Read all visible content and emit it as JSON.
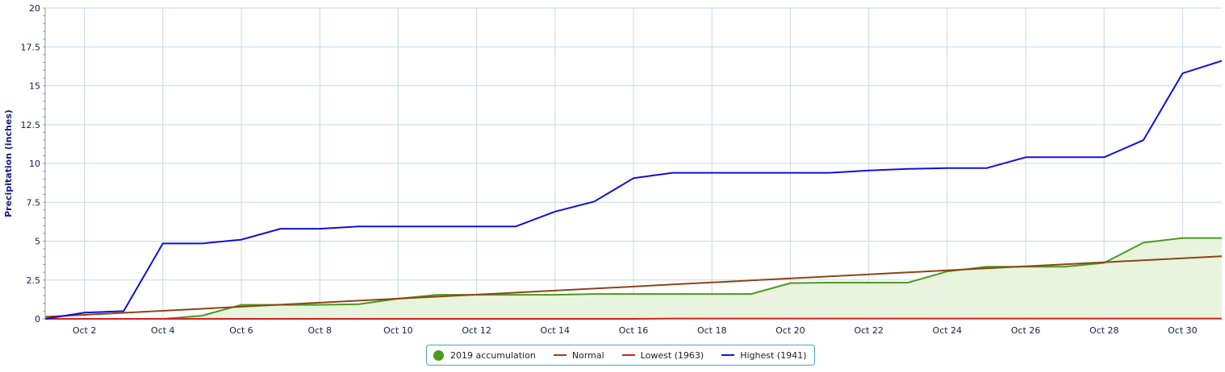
{
  "chart_data": {
    "type": "line",
    "title": "",
    "xlabel": "",
    "ylabel": "Precipitation (inches)",
    "ylim": [
      0,
      20
    ],
    "xlim": [
      1,
      31
    ],
    "y_ticks": [
      "0",
      "2.5",
      "5",
      "7.5",
      "10",
      "12.5",
      "15",
      "17.5",
      "20"
    ],
    "y_tick_values": [
      0,
      2.5,
      5,
      7.5,
      10,
      12.5,
      15,
      17.5,
      20
    ],
    "x_ticks": [
      "Oct 2",
      "Oct 4",
      "Oct 6",
      "Oct 8",
      "Oct 10",
      "Oct 12",
      "Oct 14",
      "Oct 16",
      "Oct 18",
      "Oct 20",
      "Oct 22",
      "Oct 24",
      "Oct 26",
      "Oct 28",
      "Oct 30"
    ],
    "x_tick_values": [
      2,
      4,
      6,
      8,
      10,
      12,
      14,
      16,
      18,
      20,
      22,
      24,
      26,
      28,
      30
    ],
    "grid": true,
    "legend_position": "bottom-center",
    "x": [
      1,
      2,
      3,
      4,
      5,
      6,
      7,
      8,
      9,
      10,
      11,
      12,
      13,
      14,
      15,
      16,
      17,
      18,
      19,
      20,
      21,
      22,
      23,
      24,
      25,
      26,
      27,
      28,
      29,
      30,
      31
    ],
    "series": [
      {
        "name": "2019 accumulation",
        "color": "#4a9a1e",
        "fill": "#e9f4df",
        "area": true,
        "values": [
          0,
          0,
          0,
          0,
          0.2,
          0.9,
          0.9,
          0.9,
          0.95,
          1.3,
          1.55,
          1.55,
          1.55,
          1.55,
          1.6,
          1.6,
          1.6,
          1.6,
          1.6,
          2.3,
          2.33,
          2.33,
          2.33,
          3.05,
          3.35,
          3.35,
          3.35,
          3.6,
          4.9,
          5.2,
          5.2
        ]
      },
      {
        "name": "Normal",
        "color": "#8b4513",
        "area": false,
        "values": [
          0.13,
          0.26,
          0.39,
          0.52,
          0.65,
          0.78,
          0.91,
          1.04,
          1.17,
          1.3,
          1.43,
          1.56,
          1.69,
          1.82,
          1.95,
          2.08,
          2.21,
          2.34,
          2.47,
          2.6,
          2.73,
          2.86,
          2.99,
          3.12,
          3.25,
          3.38,
          3.51,
          3.64,
          3.77,
          3.9,
          4.03
        ]
      },
      {
        "name": "Lowest (1963)",
        "color": "#d62020",
        "area": false,
        "values": [
          0,
          0,
          0,
          0,
          0,
          0,
          0,
          0,
          0,
          0,
          0,
          0,
          0,
          0,
          0,
          0,
          0.02,
          0.02,
          0.02,
          0.02,
          0.02,
          0.02,
          0.02,
          0.02,
          0.02,
          0.02,
          0.02,
          0.02,
          0.02,
          0.02,
          0.02
        ]
      },
      {
        "name": "Highest (1941)",
        "color": "#1010d8",
        "area": false,
        "values": [
          0,
          0.4,
          0.5,
          4.85,
          4.85,
          5.1,
          5.8,
          5.8,
          5.95,
          5.95,
          5.95,
          5.95,
          5.95,
          6.9,
          7.55,
          9.05,
          9.4,
          9.4,
          9.4,
          9.4,
          9.4,
          9.55,
          9.65,
          9.7,
          9.7,
          10.4,
          10.4,
          10.4,
          11.5,
          15.8,
          16.6
        ]
      }
    ]
  }
}
